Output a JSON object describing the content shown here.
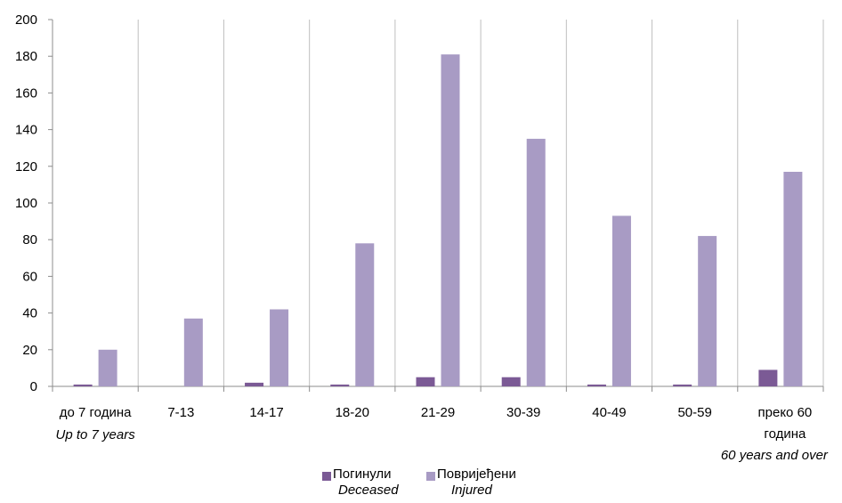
{
  "chart_data": {
    "type": "bar",
    "categories": [
      {
        "label": "до 7 година",
        "label_en": "Up to 7 years"
      },
      {
        "label": "7-13",
        "label_en": ""
      },
      {
        "label": "14-17",
        "label_en": ""
      },
      {
        "label": "18-20",
        "label_en": ""
      },
      {
        "label": "21-29",
        "label_en": ""
      },
      {
        "label": "30-39",
        "label_en": ""
      },
      {
        "label": "40-49",
        "label_en": ""
      },
      {
        "label": "50-59",
        "label_en": ""
      },
      {
        "label": "преко 60 година",
        "label_en": "60 years and over"
      }
    ],
    "series": [
      {
        "name": "Погинули",
        "name_en": "Deceased",
        "color": "#7b5a95",
        "values": [
          1,
          0,
          2,
          1,
          5,
          5,
          1,
          1,
          9
        ]
      },
      {
        "name": "Повријеђени",
        "name_en": "Injured",
        "color": "#a89bc4",
        "values": [
          20,
          37,
          42,
          78,
          181,
          135,
          93,
          82,
          117
        ]
      }
    ],
    "ylim": [
      0,
      200
    ],
    "yticks": [
      "0",
      "20",
      "40",
      "60",
      "80",
      "100",
      "120",
      "140",
      "160",
      "180",
      "200"
    ],
    "grid": true,
    "grid_direction": "vertical",
    "legend_position": "bottom-center",
    "title": "",
    "xlabel": "",
    "ylabel": ""
  }
}
